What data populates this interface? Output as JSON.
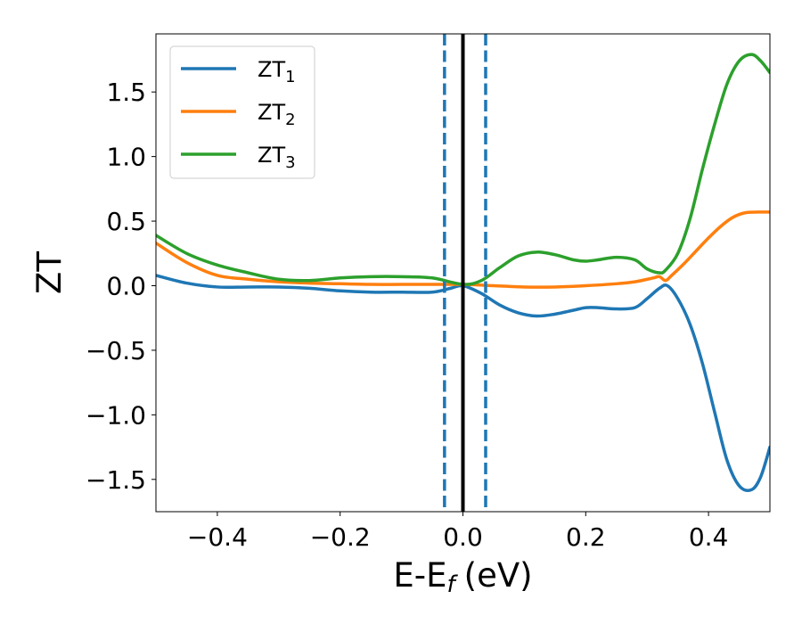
{
  "chart_data": {
    "type": "line",
    "xlabel": "E-E",
    "xlabel_sub": "f",
    "xlabel_unit": "(eV)",
    "ylabel": "ZT",
    "xlim": [
      -0.5,
      0.5
    ],
    "ylim": [
      -1.75,
      1.95
    ],
    "xticks": [
      -0.4,
      -0.2,
      0.0,
      0.2,
      0.4
    ],
    "xtick_labels": [
      "−0.4",
      "−0.2",
      "0.0",
      "0.2",
      "0.4"
    ],
    "yticks": [
      -1.5,
      -1.0,
      -0.5,
      0.0,
      0.5,
      1.0,
      1.5
    ],
    "ytick_labels": [
      "−1.5",
      "−1.0",
      "−0.5",
      "0.0",
      "0.5",
      "1.0",
      "1.5"
    ],
    "grid": false,
    "legend_position": "top-left",
    "vlines": [
      {
        "x": -0.03,
        "style": "dashed",
        "color": "#1f77b4"
      },
      {
        "x": 0.0,
        "style": "solid",
        "color": "#000000"
      },
      {
        "x": 0.037,
        "style": "dashed",
        "color": "#1f77b4"
      }
    ],
    "series": [
      {
        "name": "ZT",
        "name_sub": "1",
        "color": "#1f77b4",
        "x": [
          -0.5,
          -0.45,
          -0.4,
          -0.35,
          -0.3,
          -0.25,
          -0.2,
          -0.15,
          -0.1,
          -0.05,
          -0.02,
          0.0,
          0.03,
          0.06,
          0.09,
          0.12,
          0.15,
          0.18,
          0.2,
          0.22,
          0.25,
          0.28,
          0.3,
          0.32,
          0.333,
          0.35,
          0.37,
          0.39,
          0.41,
          0.43,
          0.45,
          0.47,
          0.485,
          0.5
        ],
        "y": [
          0.08,
          0.02,
          -0.01,
          -0.01,
          -0.01,
          -0.02,
          -0.04,
          -0.05,
          -0.05,
          -0.05,
          -0.02,
          0.0,
          -0.06,
          -0.15,
          -0.21,
          -0.235,
          -0.22,
          -0.19,
          -0.17,
          -0.17,
          -0.18,
          -0.17,
          -0.1,
          -0.02,
          0.0,
          -0.1,
          -0.3,
          -0.6,
          -0.98,
          -1.35,
          -1.55,
          -1.58,
          -1.48,
          -1.25
        ]
      },
      {
        "name": "ZT",
        "name_sub": "2",
        "color": "#ff7f0e",
        "x": [
          -0.5,
          -0.45,
          -0.4,
          -0.35,
          -0.3,
          -0.25,
          -0.2,
          -0.15,
          -0.1,
          -0.05,
          0.0,
          0.05,
          0.1,
          0.15,
          0.2,
          0.25,
          0.28,
          0.31,
          0.32,
          0.33,
          0.34,
          0.36,
          0.38,
          0.4,
          0.42,
          0.44,
          0.46,
          0.48,
          0.5
        ],
        "y": [
          0.33,
          0.18,
          0.08,
          0.05,
          0.03,
          0.02,
          0.015,
          0.01,
          0.01,
          0.01,
          0.01,
          0.0,
          -0.01,
          -0.01,
          0.0,
          0.015,
          0.03,
          0.06,
          0.07,
          0.04,
          0.08,
          0.17,
          0.27,
          0.37,
          0.46,
          0.53,
          0.565,
          0.57,
          0.57
        ]
      },
      {
        "name": "ZT",
        "name_sub": "3",
        "color": "#2ca02c",
        "x": [
          -0.5,
          -0.45,
          -0.4,
          -0.35,
          -0.3,
          -0.25,
          -0.2,
          -0.15,
          -0.1,
          -0.05,
          0.0,
          0.03,
          0.06,
          0.09,
          0.12,
          0.15,
          0.18,
          0.2,
          0.22,
          0.25,
          0.28,
          0.3,
          0.32,
          0.33,
          0.35,
          0.37,
          0.39,
          0.41,
          0.43,
          0.45,
          0.47,
          0.485,
          0.5
        ],
        "y": [
          0.39,
          0.25,
          0.16,
          0.1,
          0.05,
          0.04,
          0.06,
          0.07,
          0.07,
          0.06,
          0.01,
          0.04,
          0.14,
          0.23,
          0.26,
          0.24,
          0.2,
          0.19,
          0.2,
          0.22,
          0.2,
          0.13,
          0.1,
          0.12,
          0.25,
          0.52,
          0.9,
          1.25,
          1.56,
          1.74,
          1.79,
          1.74,
          1.65
        ]
      }
    ]
  }
}
